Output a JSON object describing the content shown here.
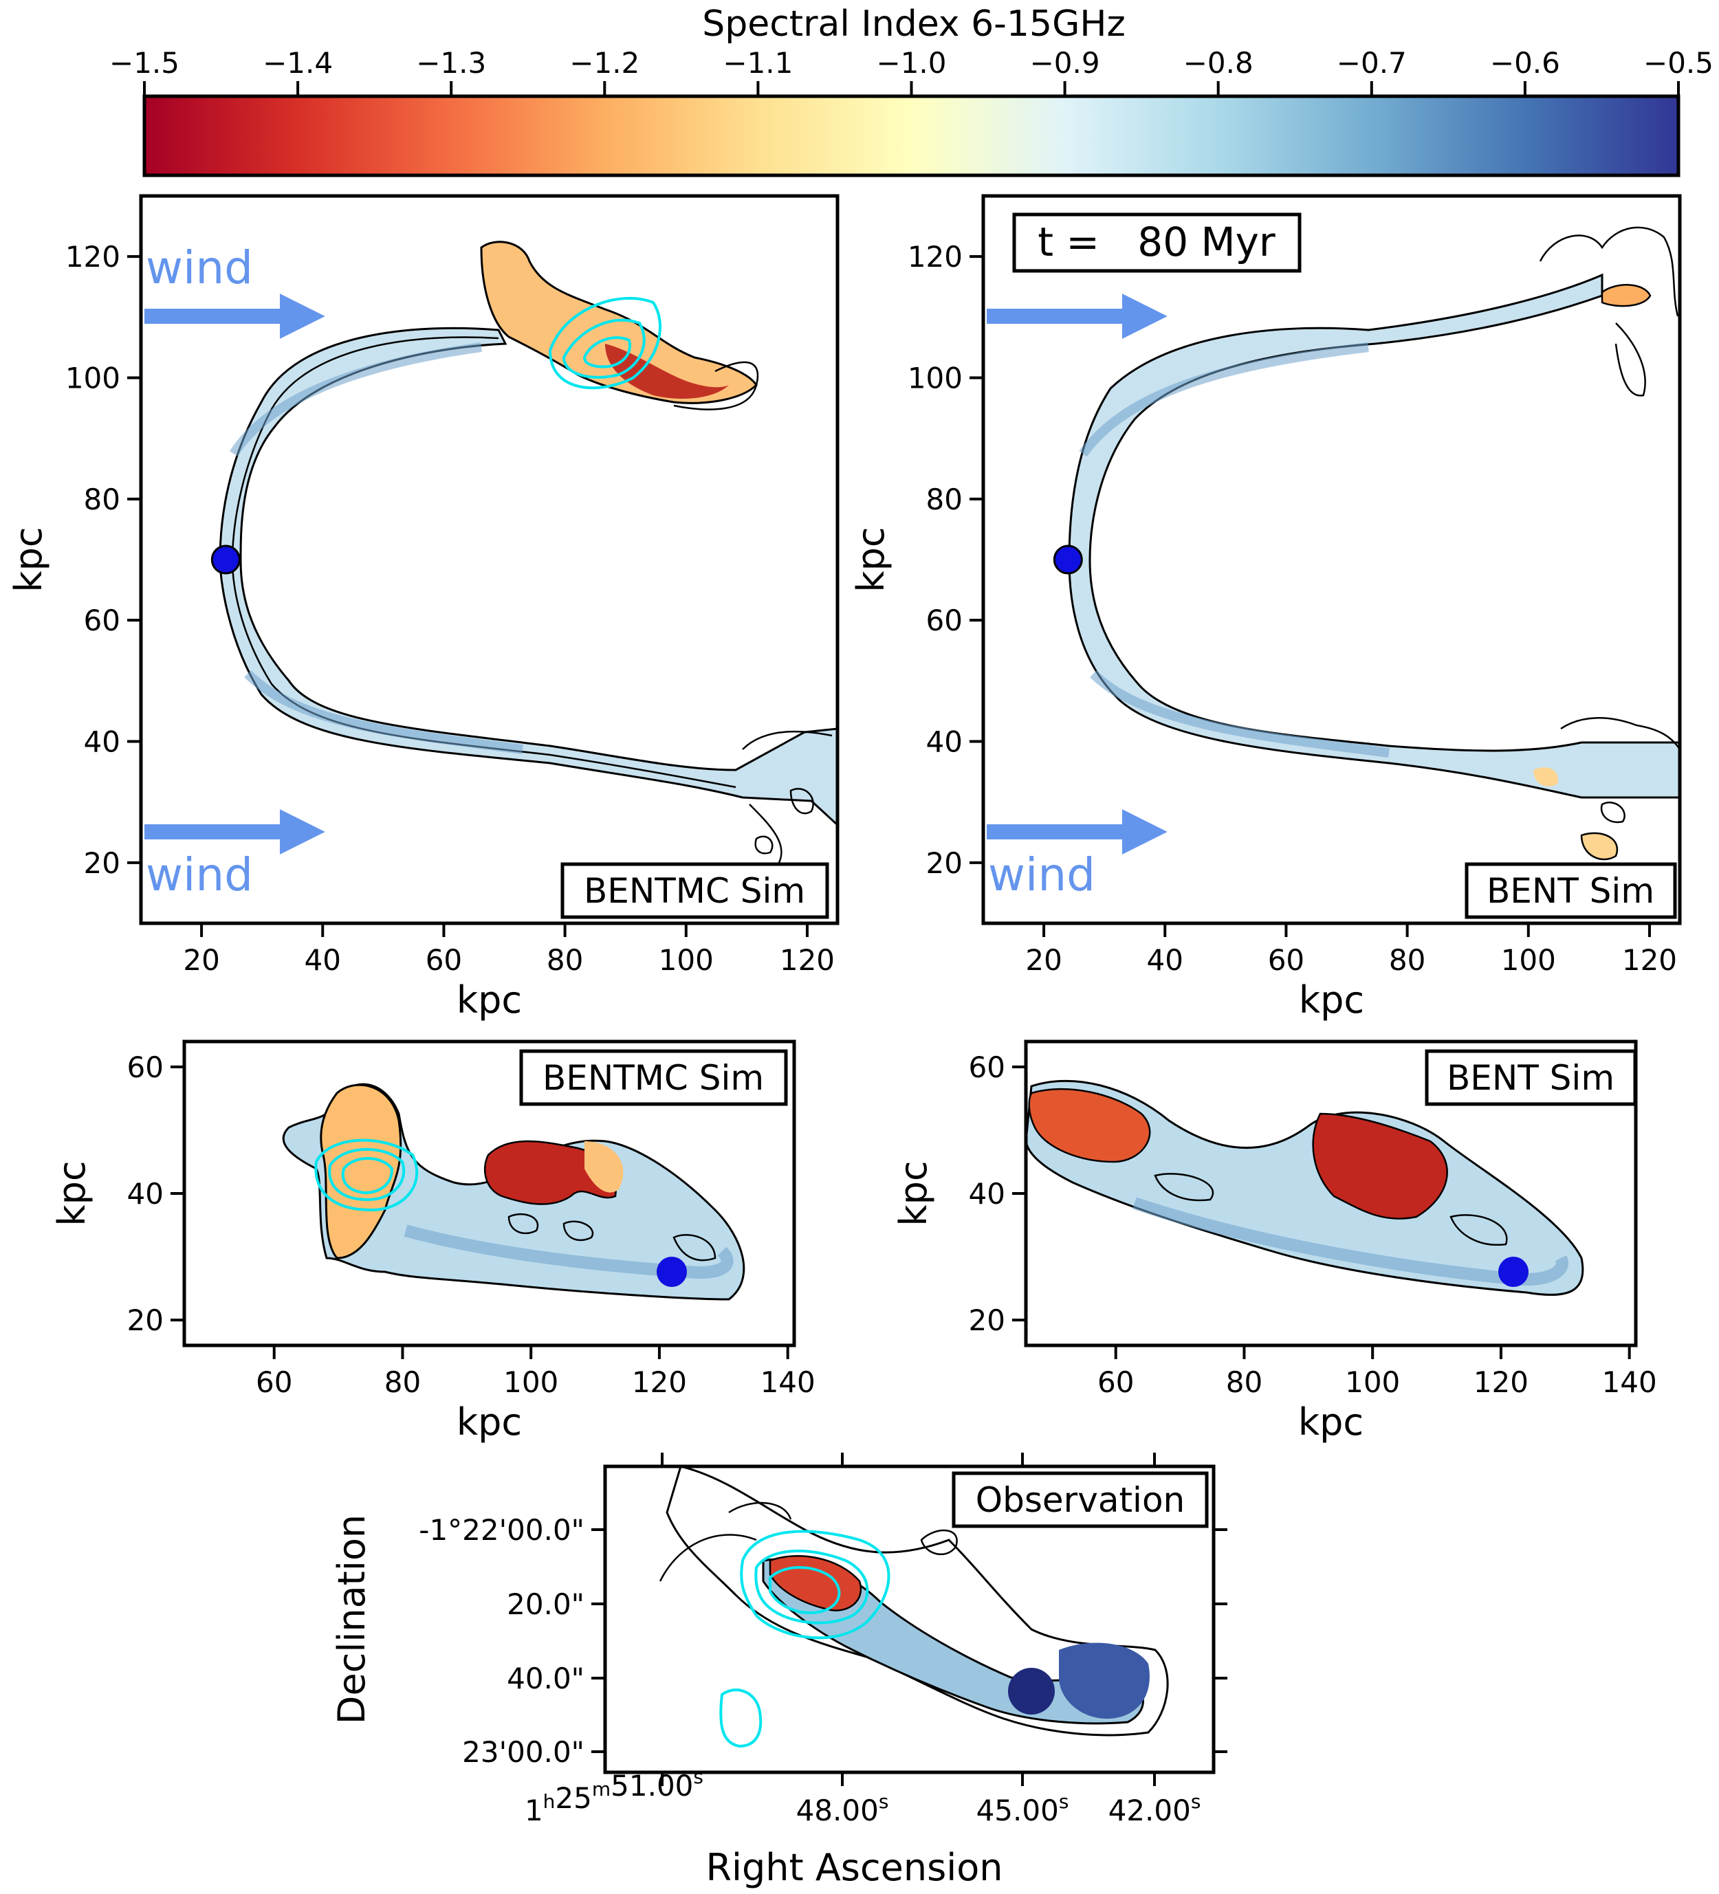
{
  "colorbar": {
    "label": "Spectral Index 6-15GHz",
    "min": -1.5,
    "max": -0.5,
    "ticks": [
      "−1.5",
      "−1.4",
      "−1.3",
      "−1.2",
      "−1.1",
      "−1.0",
      "−0.9",
      "−0.8",
      "−0.7",
      "−0.6",
      "−0.5"
    ],
    "colormap": "RdYlBu",
    "stops": [
      "#a50026",
      "#d73027",
      "#f46d43",
      "#fdae61",
      "#fee090",
      "#ffffbf",
      "#e0f3f8",
      "#abd9e9",
      "#74add1",
      "#4575b4",
      "#313695"
    ]
  },
  "chart_data": [
    {
      "type": "heatmap",
      "panel": "top-left",
      "label": "BENTMC Sim",
      "xlabel": "kpc",
      "ylabel": "kpc",
      "xlim": [
        10,
        125
      ],
      "ylim": [
        10,
        130
      ],
      "xticks": [
        20,
        40,
        60,
        80,
        100,
        120
      ],
      "yticks": [
        20,
        40,
        60,
        80,
        100,
        120
      ],
      "wind_labels": [
        "wind",
        "wind"
      ],
      "core_position": [
        24,
        70
      ],
      "has_cyan_contours": true
    },
    {
      "type": "heatmap",
      "panel": "top-right",
      "label": "BENT Sim",
      "time_label": "t =   80 Myr",
      "xlabel": "kpc",
      "ylabel": "kpc",
      "xlim": [
        10,
        125
      ],
      "ylim": [
        10,
        130
      ],
      "xticks": [
        20,
        40,
        60,
        80,
        100,
        120
      ],
      "yticks": [
        20,
        40,
        60,
        80,
        100,
        120
      ],
      "wind_labels": [
        "wind"
      ],
      "core_position": [
        24,
        70
      ],
      "has_cyan_contours": false
    },
    {
      "type": "heatmap",
      "panel": "middle-left",
      "label": "BENTMC Sim",
      "xlabel": "kpc",
      "ylabel": "kpc",
      "xlim": [
        46,
        141
      ],
      "ylim": [
        16,
        64
      ],
      "xticks": [
        60,
        80,
        100,
        120,
        140
      ],
      "yticks": [
        20,
        40,
        60
      ],
      "core_position": [
        122,
        28.5
      ],
      "has_cyan_contours": true
    },
    {
      "type": "heatmap",
      "panel": "middle-right",
      "label": "BENT Sim",
      "xlabel": "kpc",
      "ylabel": "kpc",
      "xlim": [
        46,
        141
      ],
      "ylim": [
        16,
        64
      ],
      "xticks": [
        60,
        80,
        100,
        120,
        140
      ],
      "yticks": [
        20,
        40,
        60
      ],
      "core_position": [
        122,
        28.5
      ],
      "has_cyan_contours": false
    },
    {
      "type": "heatmap",
      "panel": "bottom",
      "label": "Observation",
      "xlabel": "Right Ascension",
      "ylabel": "Declination",
      "xticks": [
        {
          "h": "1",
          "m": "25",
          "s": "51.00"
        },
        {
          "s": "48.00"
        },
        {
          "s": "45.00"
        },
        {
          "s": "42.00"
        }
      ],
      "yticks": [
        "-1°22'00.0\"",
        "20.0\"",
        "40.0\"",
        "23'00.0\""
      ],
      "has_cyan_contours": true
    }
  ]
}
